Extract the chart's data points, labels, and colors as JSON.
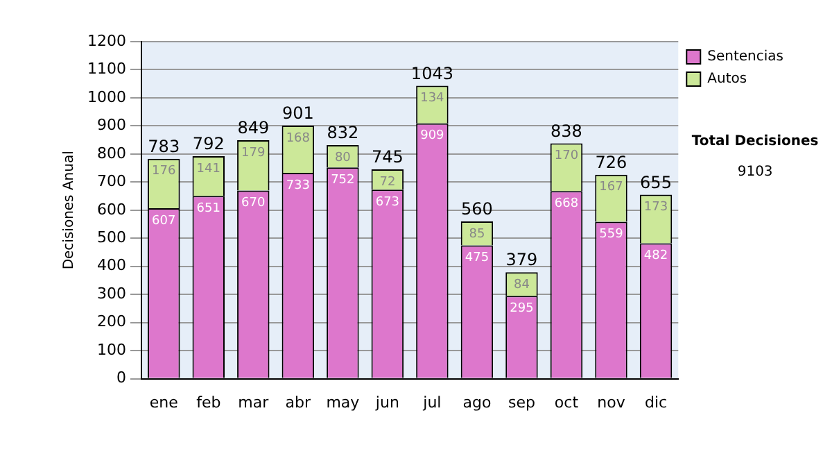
{
  "chart_data": {
    "type": "bar",
    "ylabel": "Decisiones Anual",
    "categories": [
      "ene",
      "feb",
      "mar",
      "abr",
      "may",
      "jun",
      "jul",
      "ago",
      "sep",
      "oct",
      "nov",
      "dic"
    ],
    "series": [
      {
        "name": "Sentencias",
        "color": "#dd77cc",
        "values": [
          607,
          651,
          670,
          733,
          752,
          673,
          909,
          475,
          295,
          668,
          559,
          482
        ]
      },
      {
        "name": "Autos",
        "color": "#cce899",
        "values": [
          176,
          141,
          179,
          168,
          80,
          72,
          134,
          85,
          84,
          170,
          167,
          173
        ]
      }
    ],
    "stacked": true,
    "data_labels": true,
    "totals": [
      "783",
      "792",
      "849",
      "901",
      "832",
      "745",
      "1043",
      "560",
      "379",
      "838",
      "726",
      "655"
    ],
    "ylim": [
      0,
      1200
    ],
    "yticks": [
      0,
      100,
      200,
      300,
      400,
      500,
      600,
      700,
      800,
      900,
      1000,
      1100,
      1200
    ],
    "grid": "y",
    "legend": "right",
    "annotations": [
      "Total Decisiones",
      "9103"
    ]
  }
}
